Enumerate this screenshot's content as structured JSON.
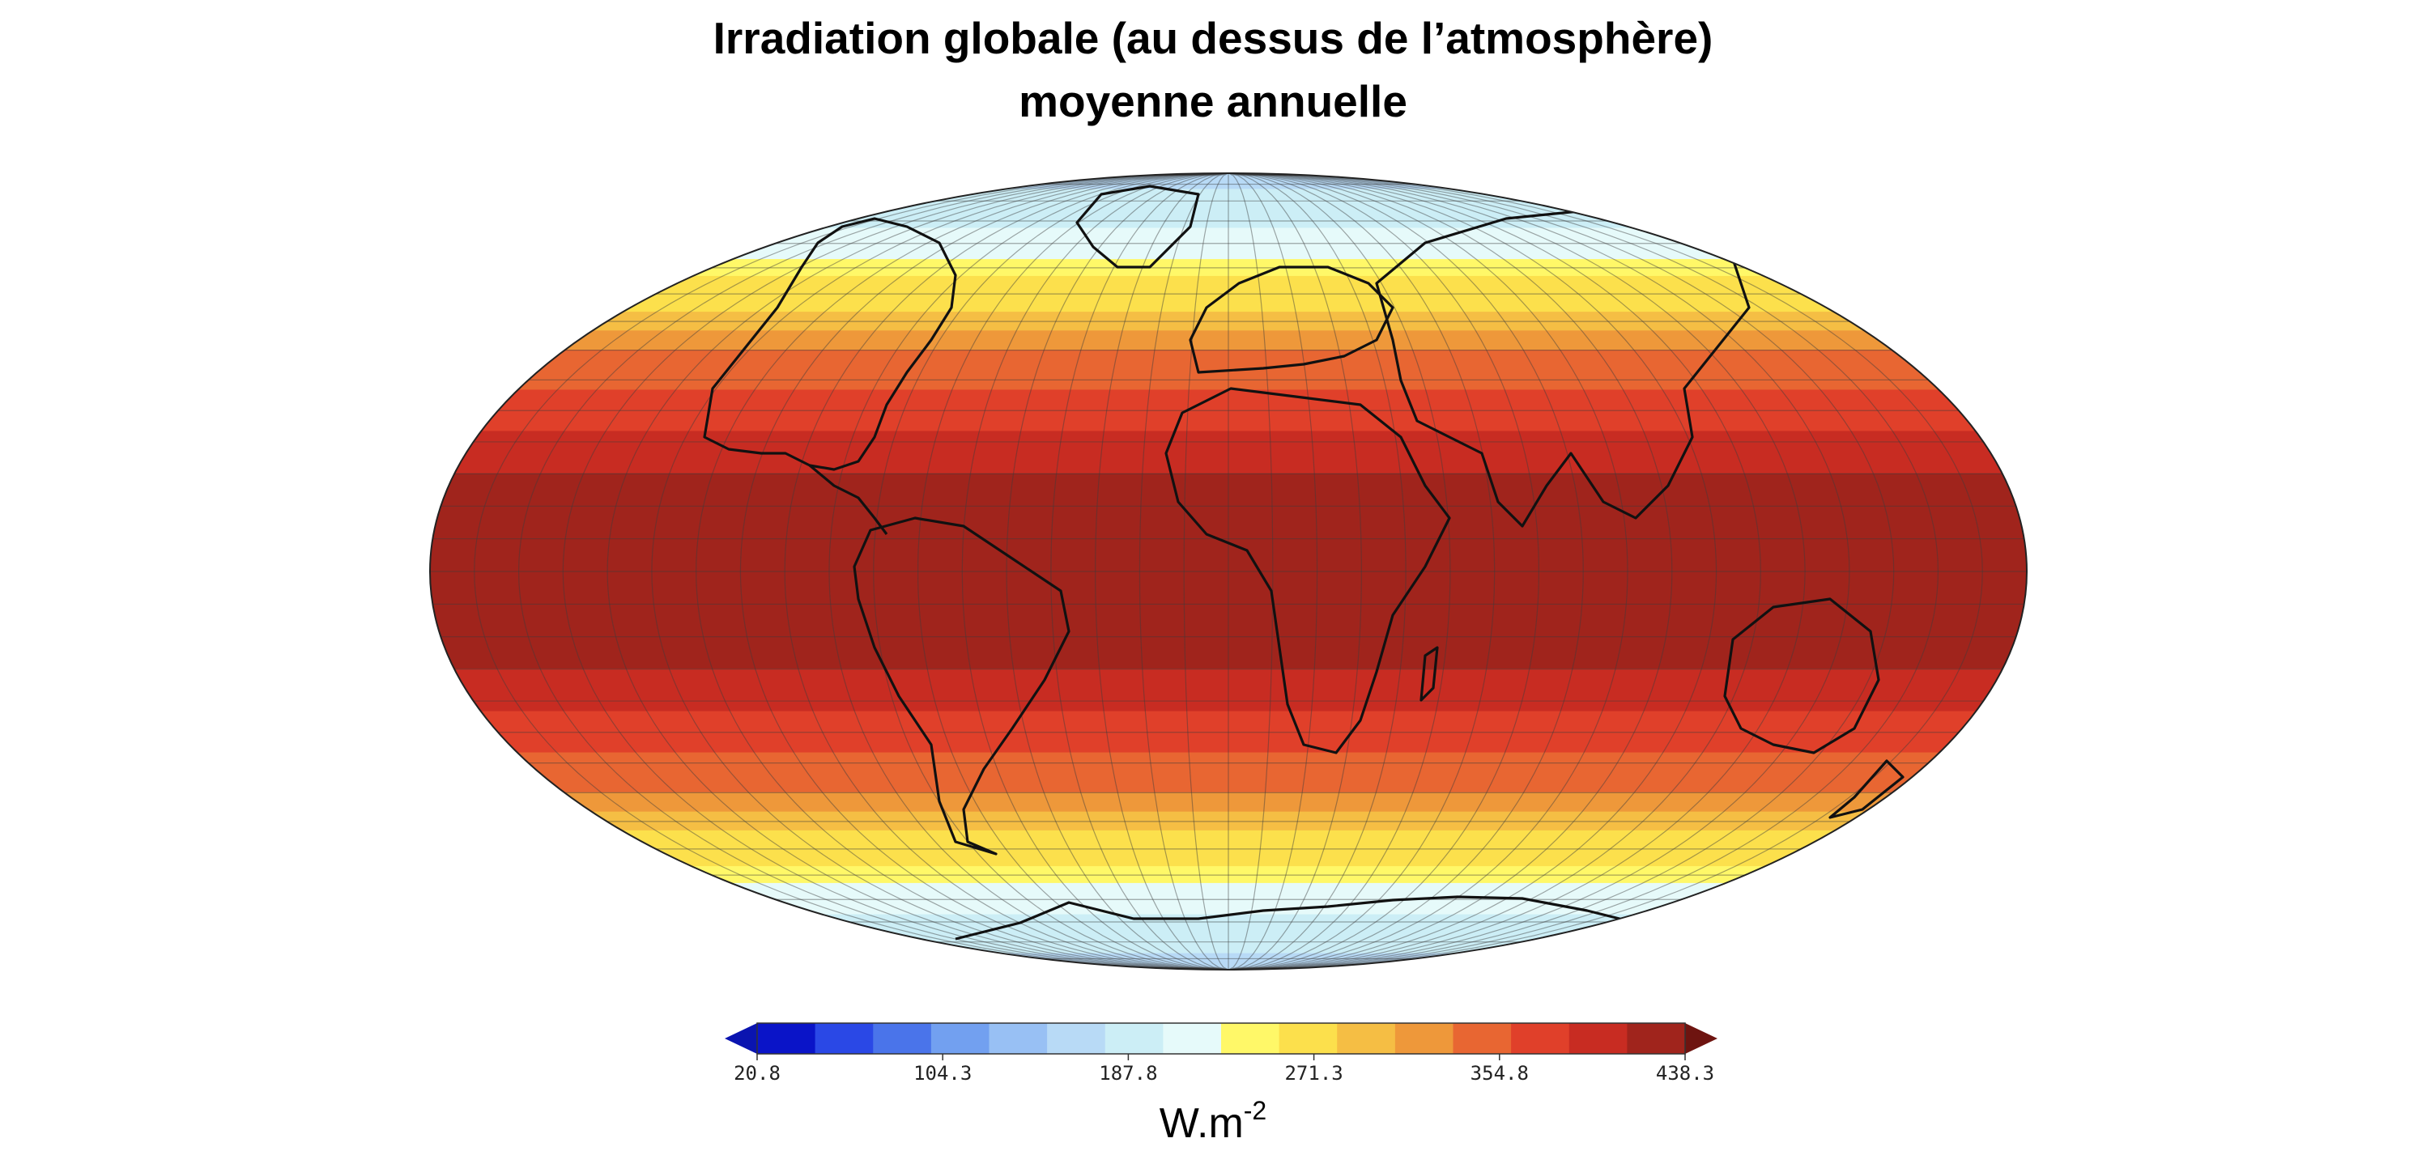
{
  "title": {
    "line1": "Irradiation globale (au dessus de l’atmosphère)",
    "line2": "moyenne annuelle"
  },
  "colorbar": {
    "unit_base": "W.m",
    "unit_exp": "-2",
    "ticks": [
      "20.8",
      "104.3",
      "187.8",
      "271.3",
      "354.8",
      "438.3"
    ],
    "colors": [
      "#0a14c8",
      "#2a48e6",
      "#4a74ea",
      "#72a0f0",
      "#98c0f4",
      "#b8daf6",
      "#cceef6",
      "#e6fafa",
      "#fff868",
      "#fce04c",
      "#f5be44",
      "#ee983a",
      "#e86632",
      "#e0402a",
      "#c82c22",
      "#a0241c"
    ],
    "extend_low_color": "#0a14b0",
    "extend_high_color": "#6e1410"
  },
  "chart_data": {
    "type": "heatmap",
    "projection": "mollweide",
    "variable": "annual mean top-of-atmosphere irradiation",
    "unit": "W.m-2",
    "vmin": 20.8,
    "vmax": 438.3,
    "latitudes": [
      90,
      80,
      70,
      60,
      50,
      40,
      30,
      20,
      10,
      0,
      -10,
      -20,
      -30,
      -40,
      -50,
      -60,
      -70,
      -80,
      -90
    ],
    "values": [
      175,
      178,
      200,
      242,
      290,
      335,
      376,
      405,
      425,
      432,
      425,
      405,
      376,
      335,
      290,
      242,
      200,
      178,
      175
    ],
    "grid": true,
    "coastlines": true
  }
}
